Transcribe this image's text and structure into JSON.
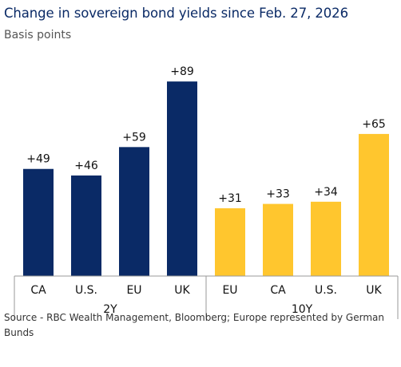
{
  "chart_data": {
    "type": "bar",
    "title": "Change in sovereign bond yields since Feb. 27, 2026",
    "subtitle": "Basis points",
    "ylim": [
      0,
      100
    ],
    "groups": [
      {
        "name": "2Y",
        "color": "#0a2a66",
        "categories": [
          "CA",
          "U.S.",
          "EU",
          "UK"
        ],
        "values": [
          49,
          46,
          59,
          89
        ],
        "labels": [
          "+49",
          "+46",
          "+59",
          "+89"
        ]
      },
      {
        "name": "10Y",
        "color": "#ffc62e",
        "categories": [
          "EU",
          "CA",
          "U.S.",
          "UK"
        ],
        "values": [
          31,
          33,
          34,
          65
        ],
        "labels": [
          "+31",
          "+33",
          "+34",
          "+65"
        ]
      }
    ]
  },
  "source": "Source - RBC Wealth Management, Bloomberg; Europe represented by German Bunds"
}
